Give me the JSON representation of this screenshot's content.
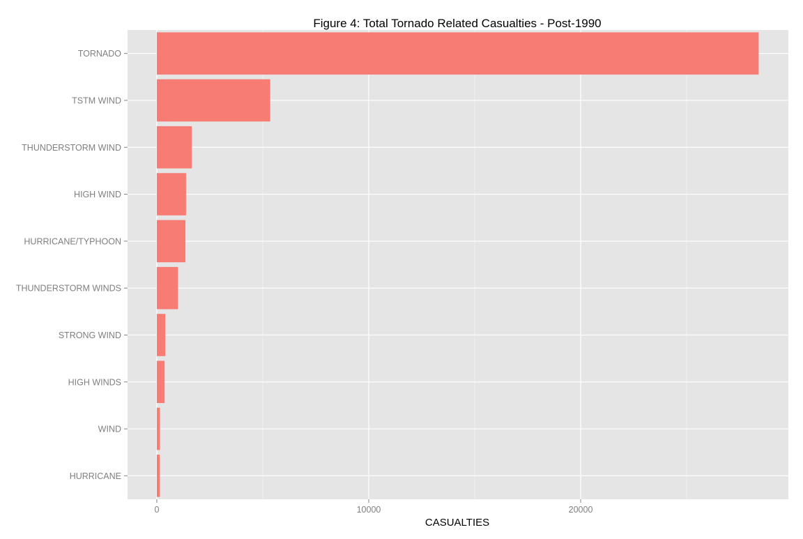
{
  "chart_data": {
    "type": "bar",
    "orientation": "horizontal",
    "title": "Figure 4: Total Tornado Related Casualties - Post-1990",
    "xlabel": "CASUALTIES",
    "ylabel": "",
    "categories": [
      "TORNADO",
      "TSTM WIND",
      "THUNDERSTORM WIND",
      "HIGH WIND",
      "HURRICANE/TYPHOON",
      "THUNDERSTORM WINDS",
      "STRONG WIND",
      "HIGH WINDS",
      "WIND",
      "HURRICANE"
    ],
    "values": [
      28400,
      5350,
      1650,
      1380,
      1350,
      1000,
      400,
      370,
      150,
      140
    ],
    "xlim": [
      -1380,
      29800
    ],
    "xticks": [
      0,
      10000,
      20000
    ],
    "xtick_labels": [
      "0",
      "10000",
      "20000"
    ],
    "grid": true,
    "legend": "none",
    "colors": {
      "bar": "#f8766d",
      "panel_background": "#e5e5e5",
      "grid_major": "#ffffff",
      "grid_minor": "#f2f2f2",
      "tick_label": "#7f7f7f",
      "title": "#000000"
    }
  }
}
